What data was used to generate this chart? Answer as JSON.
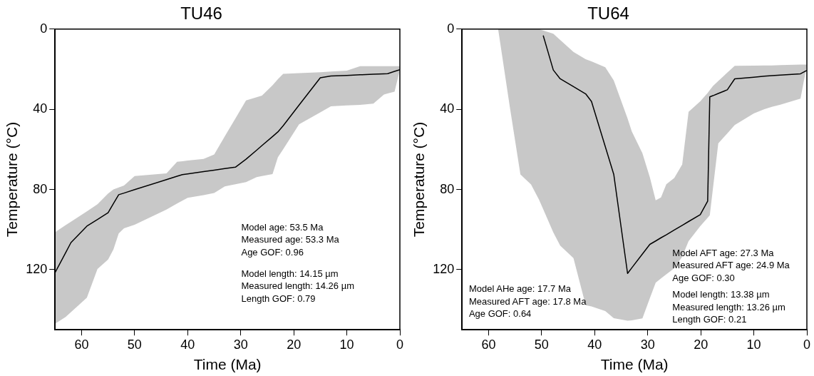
{
  "chart_data": [
    {
      "type": "line",
      "title": "TU46",
      "xlabel": "Time (Ma)",
      "ylabel": "Temperature (°C)",
      "xlim": [
        65,
        0
      ],
      "xticks": [
        60,
        50,
        40,
        30,
        20,
        10,
        0
      ],
      "ylim": [
        150,
        0
      ],
      "yticks": [
        0,
        40,
        80,
        120
      ],
      "grid": false,
      "legend": false,
      "series": [
        {
          "type": "line",
          "color": "#000000",
          "x": [
            65,
            63,
            62,
            59,
            57,
            55,
            54,
            53,
            52,
            50,
            44,
            42,
            41,
            40,
            37,
            35,
            33,
            31,
            29,
            27,
            26,
            24,
            23,
            22,
            19,
            15,
            13,
            10,
            7.5,
            5,
            3,
            2.3,
            1,
            0
          ],
          "values": [
            121.5,
            111.5,
            106.5,
            98.3,
            95,
            91.6,
            87.1,
            82.6,
            81.8,
            80.1,
            75.1,
            73.4,
            72.6,
            72.2,
            71.1,
            70.4,
            69.6,
            68.9,
            64.9,
            60.4,
            58.1,
            53.6,
            51.3,
            48.2,
            37.9,
            24.3,
            23.4,
            23.1,
            22.8,
            22.5,
            22.3,
            22.2,
            21.1,
            20.3
          ],
          "lower": [
            101.3,
            97.8,
            96.1,
            90.9,
            87.4,
            82,
            80,
            79,
            78,
            73.3,
            72,
            66.2,
            65.9,
            65.6,
            64.8,
            62.5,
            53.5,
            44.6,
            35.6,
            34,
            33.2,
            28,
            25,
            22.3,
            22,
            21.5,
            21.2,
            20.7,
            18.5,
            18.5,
            18.5,
            18.5,
            18.5,
            18.5
          ],
          "upper": [
            147,
            143.6,
            141.2,
            134,
            119.7,
            115,
            110,
            102,
            99.4,
            97.6,
            90,
            87,
            85.6,
            84.2,
            82.8,
            81.8,
            78.5,
            77.4,
            76.3,
            73.8,
            73.3,
            72.3,
            64,
            60,
            47.5,
            41.5,
            38.5,
            38.1,
            37.8,
            37.2,
            32.6,
            32.1,
            31.2,
            20.4
          ]
        }
      ],
      "annotations": [
        "Model age: 53.5 Ma\nMeasured age: 53.3 Ma\nAge GOF: 0.96",
        "Model length: 14.15 µm\nMeasured length: 14.26 µm\nLength GOF: 0.79"
      ]
    },
    {
      "type": "line",
      "title": "TU64",
      "xlabel": "Time (Ma)",
      "ylabel": "Temperature (°C)",
      "xlim": [
        65,
        0
      ],
      "xticks": [
        60,
        50,
        40,
        30,
        20,
        10,
        0
      ],
      "ylim": [
        150,
        0
      ],
      "yticks": [
        0,
        40,
        80,
        120
      ],
      "grid": false,
      "legend": false,
      "series": [
        {
          "type": "line",
          "color": "#000000",
          "x": [
            58.2,
            56,
            54,
            52,
            50.5,
            49.7,
            47.8,
            46.5,
            44,
            41.7,
            40.6,
            38,
            36.4,
            33.8,
            33,
            31,
            29.6,
            28.5,
            27.5,
            26.5,
            25,
            23.5,
            22.3,
            20.1,
            18.7,
            18.3,
            17.7,
            16.7,
            15,
            13.6,
            10,
            8,
            6.6,
            5,
            1.2,
            0
          ],
          "values": [
            null,
            null,
            null,
            null,
            null,
            3.2,
            20.4,
            24.8,
            28.7,
            32.3,
            36.1,
            58.6,
            72.5,
            121.9,
            119.1,
            112.2,
            107.4,
            105.7,
            104.1,
            102.6,
            100.2,
            97.9,
            96,
            92.6,
            85.8,
            33.8,
            33.2,
            32.1,
            30.3,
            24.8,
            24,
            23.5,
            23.2,
            22.9,
            22.3,
            20.6
          ],
          "lower": [
            0,
            0,
            0,
            0,
            0,
            0.7,
            2.3,
            5.4,
            11.4,
            15,
            16.1,
            19,
            25.6,
            44.6,
            51.1,
            61.9,
            73.9,
            85.4,
            84,
            77.4,
            74.3,
            67.5,
            41.3,
            36,
            31.8,
            30.4,
            28.4,
            25.9,
            21.7,
            18.3,
            18.2,
            18.1,
            18.1,
            18,
            17.7,
            17.7
          ],
          "upper": [
            0,
            38.8,
            72.5,
            77.5,
            85.1,
            89.9,
            101.4,
            108,
            114.2,
            137.7,
            138.4,
            140.7,
            144.2,
            145.5,
            145.3,
            144.3,
            134.3,
            126.5,
            124.4,
            122.3,
            119.3,
            113.5,
            105.8,
            98.3,
            94.1,
            92.9,
            79.4,
            57,
            52,
            47.9,
            42.1,
            39.9,
            38.8,
            37.7,
            34.7,
            18
          ]
        }
      ],
      "annotations": [
        "Model AHe age: 17.7 Ma\nMeasured AFT age: 17.8 Ma\nAge GOF: 0.64",
        "Model AFT age: 27.3 Ma\nMeasured AFT age: 24.9 Ma\nAge GOF: 0.30",
        "Model length: 13.38 µm\nMeasured length: 13.26 µm\nLength GOF: 0.21"
      ]
    }
  ]
}
